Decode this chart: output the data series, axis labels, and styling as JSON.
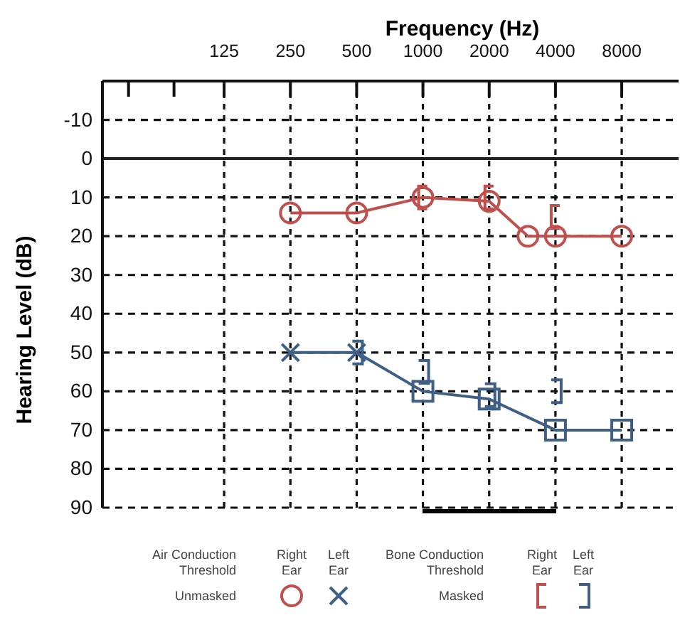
{
  "chart_data": {
    "type": "line",
    "xlabel": "Frequency (Hz)",
    "ylabel": "Hearing Level (dB)",
    "log": "x",
    "xlim": [
      35,
      14500
    ],
    "xticks": [
      {
        "value": 46,
        "label": null
      },
      {
        "value": 74,
        "label": null
      },
      125,
      250,
      500,
      1000,
      2000,
      4000,
      8000
    ],
    "ylim": [
      90,
      -20
    ],
    "yticks": [
      -10,
      0,
      10,
      20,
      30,
      40,
      50,
      60,
      70,
      80,
      90
    ],
    "grid": "xy",
    "line_style": "solid",
    "series": [
      {
        "color": "#c0504d",
        "marker": "circle",
        "x": [
          250,
          500,
          1000,
          2000,
          3000,
          4000,
          8000
        ],
        "values": [
          14,
          14,
          10,
          11,
          20,
          20,
          20
        ]
      },
      {
        "color": "#3f5f86",
        "marker": "none",
        "x": [
          250,
          500,
          1000,
          2000,
          4000,
          8000
        ],
        "values": [
          50,
          50,
          60,
          62,
          70,
          70
        ]
      },
      {
        "type": "scatter",
        "color": "#3f5f86",
        "marker": "cross",
        "x": [
          250,
          500
        ],
        "values": [
          50,
          50
        ]
      },
      {
        "type": "scatter",
        "color": "#3f5f86",
        "marker": "square",
        "x": [
          1000,
          2000,
          4000,
          8000
        ],
        "values": [
          60,
          62,
          70,
          70
        ]
      },
      {
        "type": "scatter",
        "color": "#c0504d",
        "x": [
          1000,
          2000,
          4000
        ],
        "values": [
          10,
          10,
          15
        ]
      },
      {
        "type": "scatter",
        "color": "#3f5f86",
        "x": [
          500,
          1000,
          2000,
          4000
        ],
        "values": [
          50,
          55,
          61,
          60
        ]
      }
    ],
    "ref_lines": [
      {
        "axis": "y",
        "value": 0,
        "color": "#222222"
      }
    ],
    "annotations": [
      "Air Conduction Threshold",
      "Right Ear",
      "Left Ear",
      "Unmasked",
      "Bone Conduction Threshold",
      "Right Ear",
      "Left Ear",
      "Masked"
    ]
  }
}
